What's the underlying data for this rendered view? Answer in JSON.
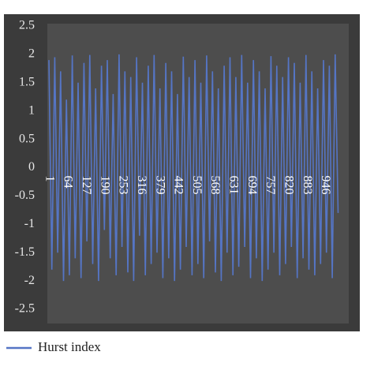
{
  "chart_data": {
    "type": "line",
    "x": [
      1,
      11,
      21,
      31,
      41,
      51,
      61,
      71,
      81,
      91,
      101,
      111,
      121,
      131,
      141,
      151,
      161,
      171,
      181,
      191,
      201,
      211,
      221,
      231,
      241,
      251,
      261,
      271,
      281,
      291,
      301,
      311,
      321,
      331,
      341,
      351,
      361,
      371,
      381,
      391,
      401,
      411,
      421,
      431,
      441,
      451,
      461,
      471,
      481,
      491,
      501,
      511,
      521,
      531,
      541,
      551,
      561,
      571,
      581,
      591,
      601,
      611,
      621,
      631,
      641,
      651,
      661,
      671,
      681,
      691,
      701,
      711,
      721,
      731,
      741,
      751,
      761,
      771,
      781,
      791,
      801,
      811,
      821,
      831,
      841,
      851,
      861,
      871,
      881,
      891,
      901,
      911,
      921,
      931,
      941,
      951,
      961,
      971,
      981,
      991
    ],
    "series": [
      {
        "name": "Hurst index",
        "color": "#5575c5",
        "values": [
          1.9,
          -1.8,
          1.95,
          -1.5,
          1.7,
          -2.0,
          1.2,
          -1.9,
          1.98,
          -1.6,
          1.5,
          -1.95,
          1.85,
          -1.3,
          1.99,
          -1.7,
          1.4,
          -2.0,
          1.8,
          -1.1,
          1.9,
          -1.6,
          1.3,
          -1.9,
          2.0,
          -1.4,
          1.7,
          -1.85,
          1.6,
          -2.0,
          1.95,
          -1.2,
          1.5,
          -1.9,
          1.8,
          -1.7,
          1.99,
          -1.5,
          1.4,
          -1.95,
          1.85,
          -1.6,
          1.7,
          -2.0,
          1.3,
          -1.8,
          1.96,
          -1.4,
          1.6,
          -1.9,
          1.9,
          -1.7,
          1.5,
          -1.95,
          1.98,
          -1.3,
          1.7,
          -1.85,
          1.4,
          -2.0,
          1.8,
          -1.5,
          1.95,
          -1.9,
          1.6,
          -1.75,
          1.99,
          -1.4,
          1.5,
          -1.95,
          1.9,
          -1.6,
          1.7,
          -2.0,
          1.4,
          -1.8,
          1.97,
          -1.5,
          1.8,
          -1.9,
          1.6,
          -1.7,
          1.95,
          -1.4,
          1.85,
          -1.95,
          1.5,
          -1.6,
          1.99,
          -1.8,
          1.7,
          -1.9,
          1.4,
          -1.7,
          1.9,
          -1.5,
          1.8,
          -1.95,
          2.0,
          -0.8
        ]
      }
    ],
    "xlim": [
      1,
      1022
    ],
    "xticks": [
      1,
      64,
      127,
      190,
      253,
      316,
      379,
      442,
      505,
      568,
      631,
      694,
      757,
      820,
      883,
      946
    ],
    "ylim": [
      -2.5,
      2.5
    ],
    "yticks": [
      2.5,
      2,
      1.5,
      1,
      0.5,
      0,
      -0.5,
      -1,
      -1.5,
      -2,
      -2.5
    ],
    "grid": false,
    "legend": "bottom-left"
  }
}
